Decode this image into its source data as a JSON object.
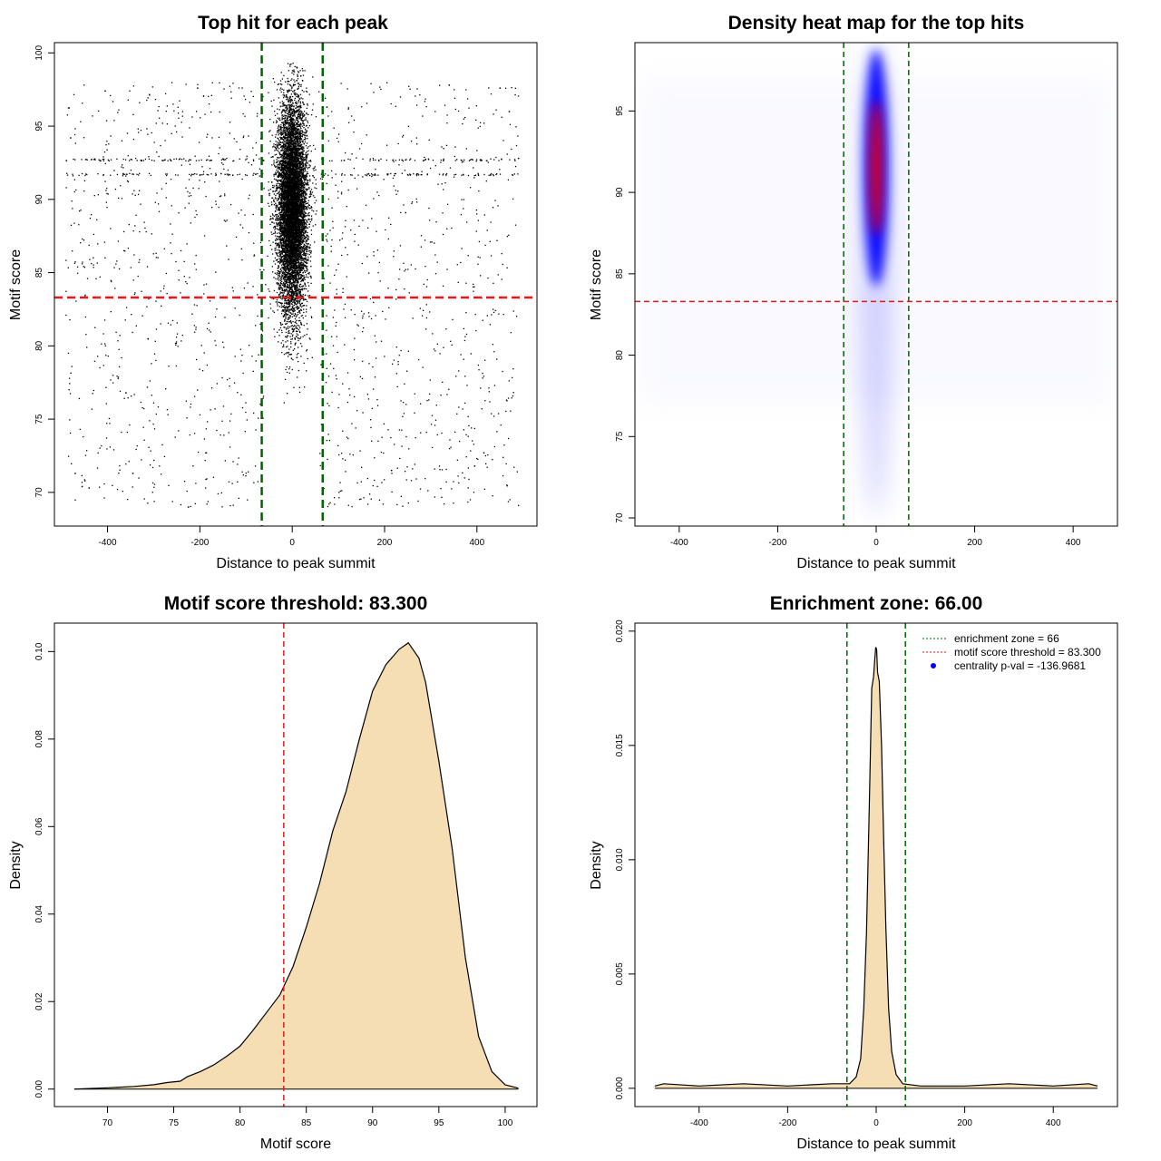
{
  "figure": {
    "background": "#ffffff"
  },
  "colors": {
    "points": "#000000",
    "enrichment_line": "#006400",
    "threshold_line": "#e31a1c",
    "density_fill": "#f5deb3",
    "density_line": "#000000",
    "heat_low": "#ffffff",
    "heat_mid": "#0000ff",
    "heat_high": "#ff0000",
    "legend_dot": "#0000ff"
  },
  "chart_data": [
    {
      "id": "scatter",
      "type": "scatter",
      "title": "Top hit for each peak",
      "xlabel": "Distance to peak summit",
      "ylabel": "Motif score",
      "xlim": [
        -515,
        530
      ],
      "ylim": [
        67.7,
        100.7
      ],
      "xticks": [
        -400,
        -200,
        0,
        200,
        400
      ],
      "yticks": [
        70,
        75,
        80,
        85,
        90,
        95,
        100
      ],
      "grid": false,
      "vlines": [
        -66,
        66
      ],
      "hline": 83.3,
      "central_cloud": {
        "x_range": [
          -66,
          66
        ],
        "x_sd": 16,
        "y_mean": 89.5,
        "y_sd": 3.6
      },
      "background_points": {
        "x_range": [
          -490,
          490
        ],
        "y_range": [
          69,
          98
        ]
      },
      "sample_points": [
        {
          "x": -480,
          "y": 94.2
        },
        {
          "x": -470,
          "y": 71.3
        },
        {
          "x": -455,
          "y": 70.4
        },
        {
          "x": -440,
          "y": 70.3
        },
        {
          "x": -405,
          "y": 97.4
        },
        {
          "x": -360,
          "y": 76.8
        },
        {
          "x": -345,
          "y": 71.3
        },
        {
          "x": -225,
          "y": 69.0
        },
        {
          "x": -205,
          "y": 97.6
        },
        {
          "x": 75,
          "y": 96.3
        },
        {
          "x": 215,
          "y": 71.5
        },
        {
          "x": 340,
          "y": 97.8
        },
        {
          "x": 395,
          "y": 71.8
        },
        {
          "x": 415,
          "y": 72.7
        },
        {
          "x": 450,
          "y": 97.6
        },
        {
          "x": 470,
          "y": 96.0
        },
        {
          "x": 490,
          "y": 92.8
        }
      ]
    },
    {
      "id": "heatmap",
      "type": "heatmap",
      "title": "Density heat map for the top hits",
      "xlabel": "Distance to peak summit",
      "ylabel": "Motif score",
      "xlim": [
        -490,
        490
      ],
      "ylim": [
        69.5,
        99.2
      ],
      "xticks": [
        -400,
        -200,
        0,
        200,
        400
      ],
      "yticks": [
        70,
        75,
        80,
        85,
        90,
        95
      ],
      "grid": false,
      "vlines": [
        -66,
        66
      ],
      "hline": 83.3,
      "hot_spot": {
        "x_center": 0,
        "x_sd": 14,
        "y_mean": 91.5,
        "y_sd": 3.3
      },
      "color_scale": [
        "#ffffff",
        "#0000ff",
        "#ff0000"
      ]
    },
    {
      "id": "score_density",
      "type": "area",
      "title": "Motif score threshold: 83.300",
      "xlabel": "Motif score",
      "ylabel": "Density",
      "xlim": [
        66.0,
        102.4
      ],
      "ylim": [
        -0.004,
        0.1065
      ],
      "xticks": [
        70,
        75,
        80,
        85,
        90,
        95,
        100
      ],
      "yticks": [
        0.0,
        0.02,
        0.04,
        0.06,
        0.08,
        0.1
      ],
      "ytick_labels": [
        "0.00",
        "0.02",
        "0.04",
        "0.06",
        "0.08",
        "0.10"
      ],
      "grid": false,
      "vline": 83.3,
      "x": [
        67.5,
        70,
        72,
        73.5,
        74.5,
        75.5,
        76,
        77,
        78,
        79,
        80,
        81,
        82,
        83,
        84,
        85,
        86,
        87,
        88,
        89,
        90,
        91,
        92,
        92.7,
        93.5,
        94,
        95,
        96,
        97,
        98,
        99,
        100,
        101
      ],
      "y": [
        0.0,
        0.0003,
        0.0006,
        0.001,
        0.0015,
        0.0018,
        0.0028,
        0.004,
        0.0055,
        0.0075,
        0.0098,
        0.0135,
        0.0175,
        0.0215,
        0.028,
        0.037,
        0.047,
        0.059,
        0.068,
        0.08,
        0.091,
        0.097,
        0.1005,
        0.102,
        0.0985,
        0.093,
        0.075,
        0.055,
        0.03,
        0.012,
        0.004,
        0.001,
        0.0002
      ]
    },
    {
      "id": "distance_density",
      "type": "area",
      "title": "Enrichment zone: 66.00",
      "xlabel": "Distance to peak summit",
      "ylabel": "Density",
      "xlim": [
        -545,
        545
      ],
      "ylim": [
        -0.0008,
        0.02035
      ],
      "xticks": [
        -400,
        -200,
        0,
        200,
        400
      ],
      "yticks": [
        0.0,
        0.005,
        0.01,
        0.015,
        0.02
      ],
      "ytick_labels": [
        "0.000",
        "0.005",
        "0.010",
        "0.015",
        "0.020"
      ],
      "grid": false,
      "vlines": [
        -66,
        66
      ],
      "x": [
        -500,
        -480,
        -400,
        -300,
        -200,
        -100,
        -60,
        -45,
        -35,
        -28,
        -22,
        -16,
        -10,
        -6,
        -3,
        -1,
        1,
        3,
        7,
        12,
        17,
        22,
        28,
        35,
        45,
        60,
        100,
        200,
        300,
        400,
        480,
        500
      ],
      "y": [
        0.0001,
        0.0002,
        0.0001,
        0.0002,
        0.0001,
        0.0002,
        0.0002,
        0.0005,
        0.0013,
        0.0035,
        0.0068,
        0.012,
        0.0175,
        0.018,
        0.0188,
        0.0193,
        0.0192,
        0.0182,
        0.0178,
        0.015,
        0.0108,
        0.007,
        0.0035,
        0.0016,
        0.0006,
        0.0002,
        0.0001,
        0.0001,
        0.0002,
        0.0001,
        0.0002,
        0.0001
      ],
      "legend": {
        "position": "top-right",
        "entries": [
          {
            "label": "enrichment zone = 66",
            "symbol": "dotted-line",
            "color": "#006400"
          },
          {
            "label": "motif score threshold = 83.300",
            "symbol": "dotted-line",
            "color": "#e31a1c"
          },
          {
            "label": "centrality p-val = -136.9681",
            "symbol": "dot",
            "color": "#0000ff"
          }
        ]
      }
    }
  ]
}
